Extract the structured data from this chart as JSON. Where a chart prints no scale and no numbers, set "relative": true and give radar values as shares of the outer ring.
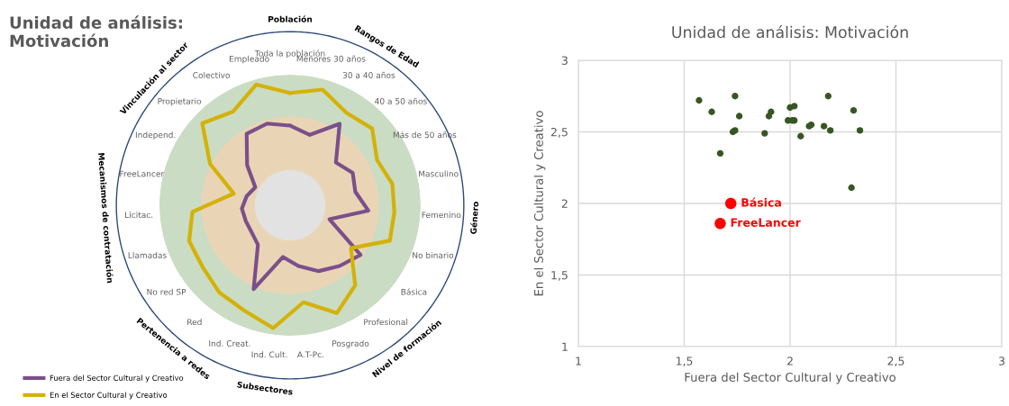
{
  "chart_data": [
    {
      "type": "radar",
      "title": "Unidad de análisis:\nMotivación",
      "relative": true,
      "legend": "bottom left",
      "line_style": "solid",
      "marker": "none",
      "categories": [
        "Toda la población",
        "Menores 30 años",
        "30 a 40 años",
        "40 a 50 años",
        "Más de 50 años",
        "Masculino",
        "Femenino",
        "No binario",
        "Básica",
        "Profesional",
        "Posgrado",
        "A.T-Pc.",
        "Ind. Cult.",
        "Ind. Creat.",
        "Red",
        "No red SP",
        "Llamadas",
        "Licitac.",
        "FreeLancer",
        "Independ.",
        "Propietario",
        "Colectivo",
        "Empleado"
      ],
      "series": [
        {
          "name": "Fuera del Sector Cultural y Creativo",
          "color": "#7b4f8a",
          "values": [
            0.61,
            0.56,
            0.73,
            0.48,
            0.54,
            0.51,
            0.6,
            0.32,
            0.66,
            0.6,
            0.55,
            0.47,
            0.4,
            0.7,
            0.39,
            0.36,
            0.36,
            0.37,
            0.34,
            0.3,
            0.45,
            0.64,
            0.65
          ]
        },
        {
          "name": "En el Sector Cultural y Creativo",
          "color": "#d4b106",
          "values": [
            0.86,
            0.92,
            0.83,
            0.86,
            0.75,
            0.8,
            0.8,
            0.81,
            0.57,
            0.79,
            0.9,
            0.75,
            0.95,
            0.88,
            0.86,
            0.82,
            0.82,
            0.75,
            0.44,
            0.69,
            0.92,
            0.84,
            0.96
          ]
        }
      ],
      "annotations": [
        {
          "text": "Población",
          "x": "Toda la población"
        },
        {
          "text": "Rangos de Edad",
          "x": "30 a 40 años"
        },
        {
          "text": "Género",
          "x": "Femenino"
        },
        {
          "text": "Nivel de formación",
          "x": "Profesional"
        },
        {
          "text": "Subsectores",
          "x": "Ind. Cult."
        },
        {
          "text": "Pertenencia a redes",
          "x": "Red"
        },
        {
          "text": "Mecanismos de contratación",
          "x": "Licitac."
        },
        {
          "text": "Vinculación al sector",
          "x": "Propietario"
        }
      ]
    },
    {
      "type": "scatter",
      "title": "Unidad de análisis: Motivación",
      "xlabel": "Fuera del Sector Cultural y Creativo",
      "ylabel": "En el Sector Cultural y Creativo",
      "xlim": [
        1,
        3
      ],
      "ylim": [
        1,
        3
      ],
      "grid": true,
      "marker": "circle",
      "xticks": [
        1,
        {
          "value": 1.5,
          "label": "1,5"
        },
        2,
        {
          "value": 2.5,
          "label": "2,5"
        },
        3
      ],
      "yticks": [
        1,
        {
          "value": 1.5,
          "label": "1,5"
        },
        2,
        {
          "value": 2.5,
          "label": "2,5"
        },
        3
      ],
      "series": [
        {
          "color": "#375623",
          "x": [
            1.57,
            1.63,
            1.74,
            1.76,
            1.73,
            1.74,
            1.67,
            1.88,
            1.9,
            1.91,
            2.0,
            2.02,
            1.99,
            2.01,
            2.02,
            2.05,
            2.09,
            2.1,
            2.16,
            2.18,
            2.19,
            2.3,
            2.33,
            2.29
          ],
          "values": [
            2.72,
            2.64,
            2.75,
            2.61,
            2.5,
            2.51,
            2.35,
            2.49,
            2.61,
            2.64,
            2.67,
            2.68,
            2.58,
            2.58,
            2.58,
            2.47,
            2.54,
            2.55,
            2.54,
            2.75,
            2.51,
            2.65,
            2.51,
            2.11
          ]
        },
        {
          "color": "#ff0000",
          "x": [
            1.72,
            1.67
          ],
          "values": [
            2.0,
            1.86
          ]
        }
      ],
      "annotations": [
        {
          "text": "Básica",
          "x": 1.72,
          "y": 2.0
        },
        {
          "text": "FreeLancer",
          "x": 1.67,
          "y": 1.86
        }
      ]
    }
  ]
}
